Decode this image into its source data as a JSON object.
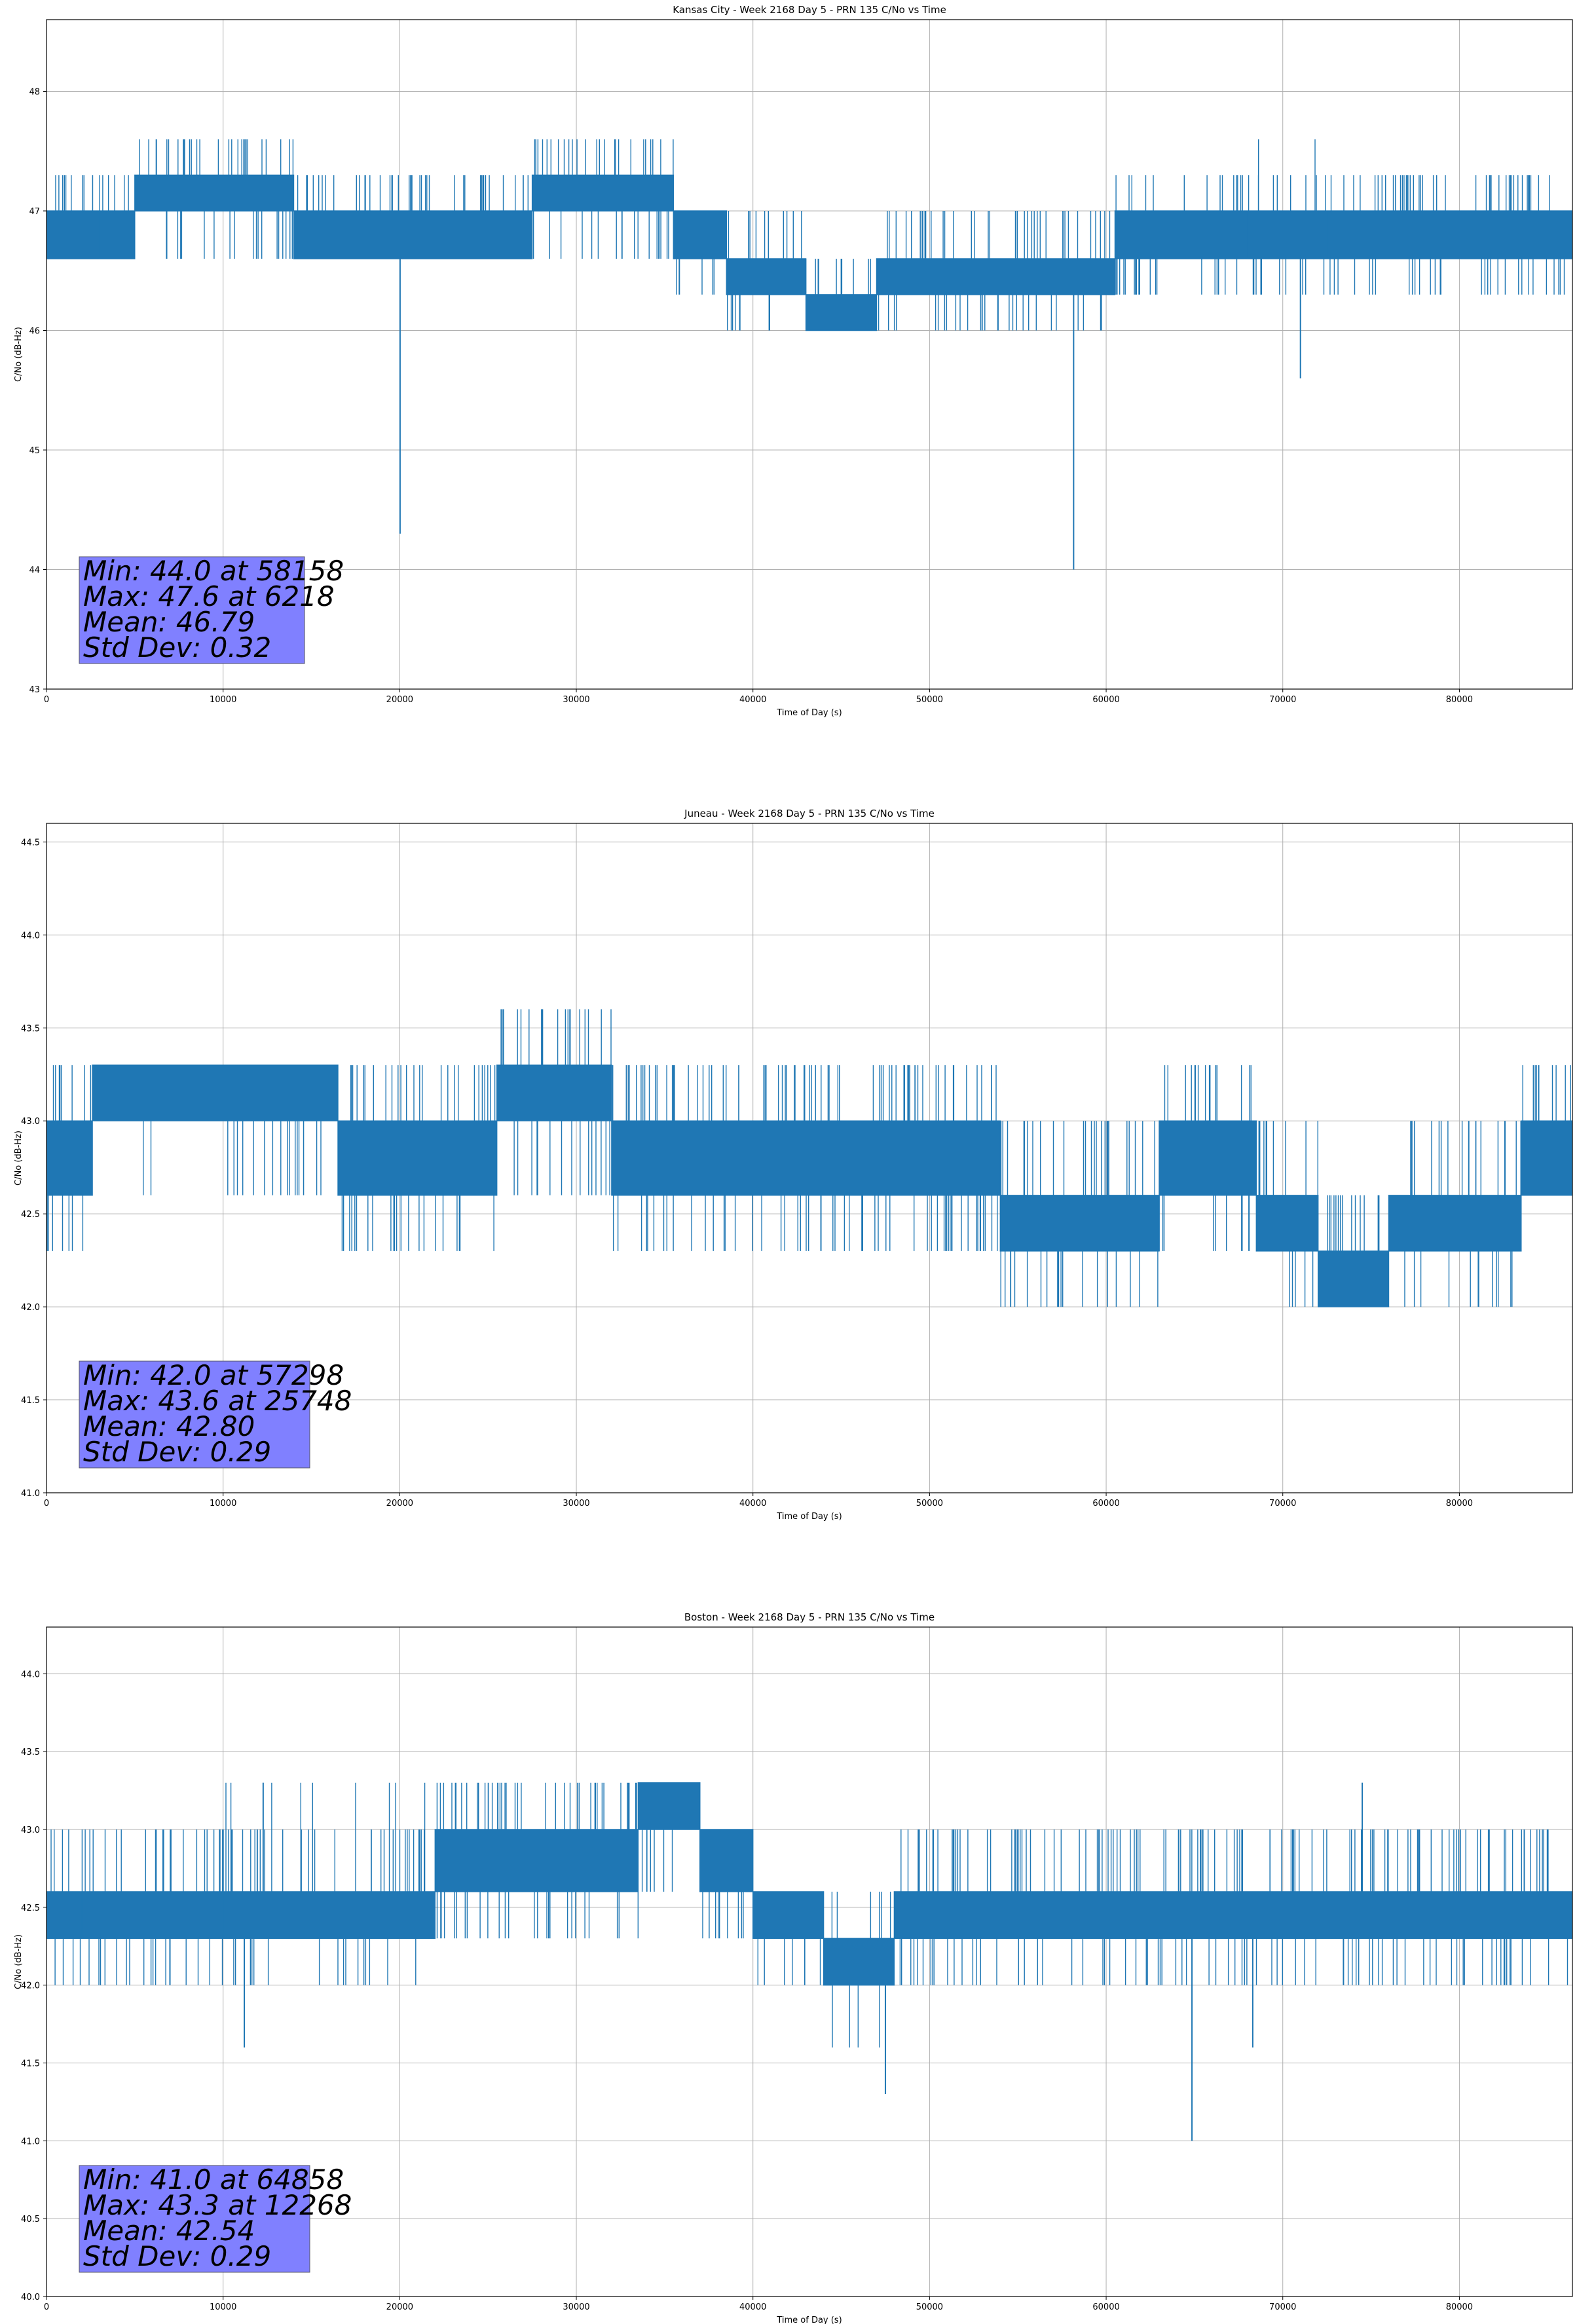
{
  "chart_data": [
    {
      "type": "line",
      "title": "Kansas City - Week 2168 Day 5 - PRN 135 C/No vs Time",
      "xlabel": "Time of Day (s)",
      "ylabel": "C/No (dB-Hz)",
      "xlim": [
        0,
        86400
      ],
      "ylim": [
        43,
        48.6
      ],
      "xticks": [
        0,
        10000,
        20000,
        30000,
        40000,
        50000,
        60000,
        70000,
        80000
      ],
      "yticks": [
        43,
        44,
        45,
        46,
        47,
        48
      ],
      "ytick_labels": [
        "43",
        "44",
        "45",
        "46",
        "47",
        "48"
      ],
      "grid": true,
      "series_color": "#1f77b4",
      "segments": [
        {
          "x": [
            0,
            3000
          ],
          "base": [
            46.6,
            47.0
          ],
          "up": [
            47.3
          ],
          "down": []
        },
        {
          "x": [
            3000,
            5000
          ],
          "base": [
            46.6,
            47.0
          ],
          "up": [
            47.3
          ],
          "down": [
            46.6
          ]
        },
        {
          "x": [
            5000,
            14000
          ],
          "base": [
            47.0,
            47.3
          ],
          "up": [
            47.6
          ],
          "down": [
            46.6
          ]
        },
        {
          "x": [
            14000,
            27500
          ],
          "base": [
            46.6,
            47.0
          ],
          "up": [
            47.3
          ],
          "down": []
        },
        {
          "x": [
            27500,
            35500
          ],
          "base": [
            47.0,
            47.3
          ],
          "up": [
            47.6
          ],
          "down": [
            46.6
          ]
        },
        {
          "x": [
            35500,
            38500
          ],
          "base": [
            46.6,
            47.0
          ],
          "up": [],
          "down": [
            46.3
          ]
        },
        {
          "x": [
            38500,
            43000
          ],
          "base": [
            46.3,
            46.6
          ],
          "up": [
            47.0
          ],
          "down": [
            46.0
          ]
        },
        {
          "x": [
            43000,
            47000
          ],
          "base": [
            46.0,
            46.3
          ],
          "up": [
            46.6
          ],
          "down": []
        },
        {
          "x": [
            47000,
            60500
          ],
          "base": [
            46.3,
            46.6
          ],
          "up": [
            47.0
          ],
          "down": [
            46.0
          ]
        },
        {
          "x": [
            60500,
            68000
          ],
          "base": [
            46.6,
            47.0
          ],
          "up": [
            47.3
          ],
          "down": [
            46.3
          ]
        },
        {
          "x": [
            68000,
            72500
          ],
          "base": [
            46.6,
            47.0
          ],
          "up": [
            47.3,
            47.6
          ],
          "down": [
            46.3
          ]
        },
        {
          "x": [
            72500,
            86400
          ],
          "base": [
            46.6,
            47.0
          ],
          "up": [
            47.3
          ],
          "down": [
            46.3
          ]
        }
      ],
      "spikes": [
        {
          "x": 20020,
          "y": 44.3
        },
        {
          "x": 58158,
          "y": 44.0
        },
        {
          "x": 71000,
          "y": 45.6
        },
        {
          "x": 32200,
          "y": 47.6
        },
        {
          "x": 6218,
          "y": 47.6
        }
      ],
      "stats": {
        "min": "Min: 44.0 at 58158",
        "max": "Max: 47.6 at 6218",
        "mean": "Mean: 46.79",
        "std": "Std Dev: 0.32"
      }
    },
    {
      "type": "line",
      "title": "Juneau - Week 2168 Day 5 - PRN 135 C/No vs Time",
      "xlabel": "Time of Day (s)",
      "ylabel": "C/No (dB-Hz)",
      "xlim": [
        0,
        86400
      ],
      "ylim": [
        41.0,
        44.6
      ],
      "xticks": [
        0,
        10000,
        20000,
        30000,
        40000,
        50000,
        60000,
        70000,
        80000
      ],
      "yticks": [
        41.0,
        41.5,
        42.0,
        42.5,
        43.0,
        43.5,
        44.0,
        44.5
      ],
      "ytick_labels": [
        "41.0",
        "41.5",
        "42.0",
        "42.5",
        "43.0",
        "43.5",
        "44.0",
        "44.5"
      ],
      "grid": true,
      "series_color": "#1f77b4",
      "segments": [
        {
          "x": [
            0,
            2600
          ],
          "base": [
            42.6,
            43.0
          ],
          "up": [
            43.3
          ],
          "down": [
            42.3
          ]
        },
        {
          "x": [
            2600,
            16500
          ],
          "base": [
            43.0,
            43.3
          ],
          "up": [],
          "down": [
            42.6
          ]
        },
        {
          "x": [
            16500,
            25500
          ],
          "base": [
            42.6,
            43.0
          ],
          "up": [
            43.3
          ],
          "down": [
            42.3
          ]
        },
        {
          "x": [
            25500,
            32000
          ],
          "base": [
            43.0,
            43.3
          ],
          "up": [
            43.6
          ],
          "down": [
            42.6
          ]
        },
        {
          "x": [
            32000,
            54000
          ],
          "base": [
            42.6,
            43.0
          ],
          "up": [
            43.3
          ],
          "down": [
            42.3
          ]
        },
        {
          "x": [
            54000,
            63000
          ],
          "base": [
            42.3,
            42.6
          ],
          "up": [
            43.0
          ],
          "down": [
            42.0
          ]
        },
        {
          "x": [
            63000,
            68500
          ],
          "base": [
            42.6,
            43.0
          ],
          "up": [
            43.3
          ],
          "down": [
            42.3
          ]
        },
        {
          "x": [
            68500,
            72000
          ],
          "base": [
            42.3,
            42.6
          ],
          "up": [
            43.0
          ],
          "down": [
            42.0
          ]
        },
        {
          "x": [
            72000,
            76000
          ],
          "base": [
            42.0,
            42.3
          ],
          "up": [
            42.6
          ],
          "down": []
        },
        {
          "x": [
            76000,
            83500
          ],
          "base": [
            42.3,
            42.6
          ],
          "up": [
            43.0
          ],
          "down": [
            42.0
          ]
        },
        {
          "x": [
            83500,
            86400
          ],
          "base": [
            42.6,
            43.0
          ],
          "up": [
            43.3
          ],
          "down": []
        }
      ],
      "spikes": [
        {
          "x": 57298,
          "y": 42.0
        },
        {
          "x": 25748,
          "y": 43.6
        }
      ],
      "stats": {
        "min": "Min: 42.0 at 57298",
        "max": "Max: 43.6 at 25748",
        "mean": "Mean: 42.80",
        "std": "Std Dev: 0.29"
      }
    },
    {
      "type": "line",
      "title": "Boston - Week 2168 Day 5 - PRN 135 C/No vs Time",
      "xlabel": "Time of Day (s)",
      "ylabel": "C/No (dB-Hz)",
      "xlim": [
        0,
        86400
      ],
      "ylim": [
        40.0,
        44.3
      ],
      "xticks": [
        0,
        10000,
        20000,
        30000,
        40000,
        50000,
        60000,
        70000,
        80000
      ],
      "yticks": [
        40.0,
        40.5,
        41.0,
        41.5,
        42.0,
        42.5,
        43.0,
        43.5,
        44.0
      ],
      "ytick_labels": [
        "40.0",
        "40.5",
        "41.0",
        "41.5",
        "42.0",
        "42.5",
        "43.0",
        "43.5",
        "44.0"
      ],
      "grid": true,
      "series_color": "#1f77b4",
      "segments": [
        {
          "x": [
            0,
            2000
          ],
          "base": [
            42.3,
            42.6
          ],
          "up": [
            43.0
          ],
          "down": [
            42.0
          ]
        },
        {
          "x": [
            2000,
            10000
          ],
          "base": [
            42.3,
            42.6
          ],
          "up": [
            43.0
          ],
          "down": [
            42.0
          ]
        },
        {
          "x": [
            10000,
            22000
          ],
          "base": [
            42.3,
            42.6
          ],
          "up": [
            43.0,
            43.3
          ],
          "down": [
            42.0
          ]
        },
        {
          "x": [
            22000,
            33500
          ],
          "base": [
            42.6,
            43.0
          ],
          "up": [
            43.3
          ],
          "down": [
            42.3
          ]
        },
        {
          "x": [
            33500,
            37000
          ],
          "base": [
            43.0,
            43.3
          ],
          "up": [],
          "down": [
            42.6
          ]
        },
        {
          "x": [
            37000,
            40000
          ],
          "base": [
            42.6,
            43.0
          ],
          "up": [],
          "down": [
            42.3
          ]
        },
        {
          "x": [
            40000,
            44000
          ],
          "base": [
            42.3,
            42.6
          ],
          "up": [],
          "down": [
            42.0
          ]
        },
        {
          "x": [
            44000,
            48000
          ],
          "base": [
            42.0,
            42.3
          ],
          "up": [
            42.6
          ],
          "down": [
            41.6
          ]
        },
        {
          "x": [
            48000,
            86400
          ],
          "base": [
            42.3,
            42.6
          ],
          "up": [
            43.0
          ],
          "down": [
            42.0
          ]
        }
      ],
      "spikes": [
        {
          "x": 11200,
          "y": 41.6
        },
        {
          "x": 47500,
          "y": 41.3
        },
        {
          "x": 64858,
          "y": 41.0
        },
        {
          "x": 12268,
          "y": 43.3
        },
        {
          "x": 68300,
          "y": 41.6
        },
        {
          "x": 74500,
          "y": 43.3
        }
      ],
      "stats": {
        "min": "Min: 41.0 at 64858",
        "max": "Max: 43.3 at 12268",
        "mean": "Mean: 42.54",
        "std": "Std Dev: 0.29"
      }
    }
  ],
  "colors": {
    "series": "#1f77b4",
    "grid": "#b0b0b0",
    "stats_box": "#8080ff",
    "axis": "#000000"
  }
}
